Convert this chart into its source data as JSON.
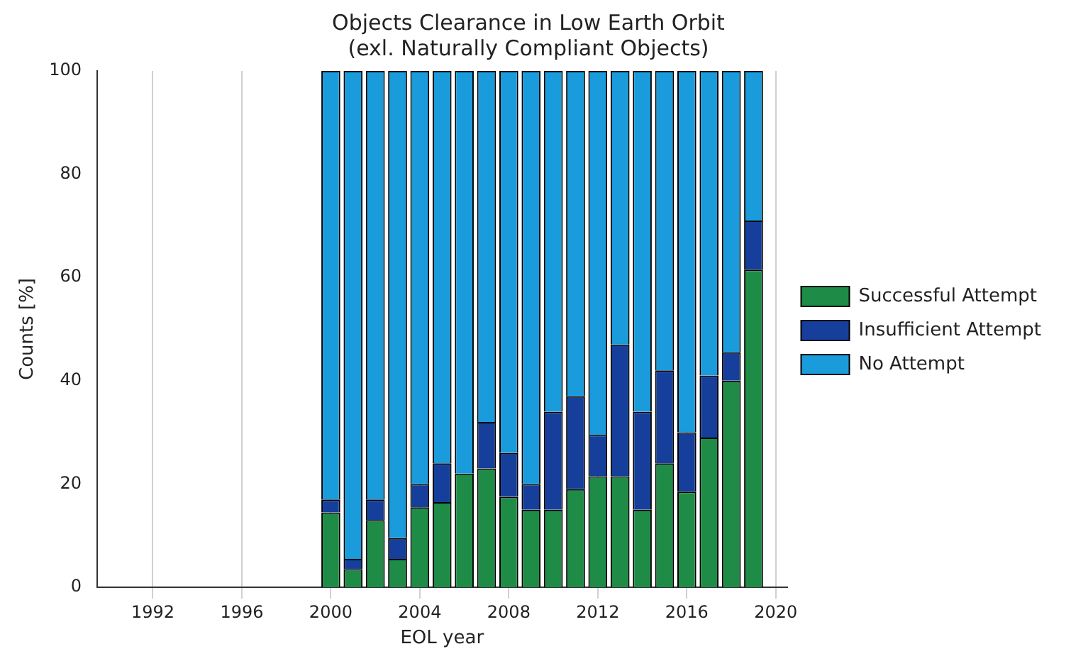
{
  "chart_data": {
    "type": "bar",
    "stacked": true,
    "title": "Objects Clearance in Low Earth Orbit",
    "subtitle": "(exl. Naturally Compliant Objects)",
    "xlabel": "EOL year",
    "ylabel": "Counts [%]",
    "x": [
      2000,
      2001,
      2002,
      2003,
      2004,
      2005,
      2006,
      2007,
      2008,
      2009,
      2010,
      2011,
      2012,
      2013,
      2014,
      2015,
      2016,
      2017,
      2018,
      2019
    ],
    "series": [
      {
        "name": "Successful Attempt",
        "color": "#1e8c46",
        "values": [
          14.5,
          3.5,
          13,
          5.5,
          15.5,
          16.5,
          22,
          23,
          17.5,
          15,
          15,
          19,
          21.5,
          21.5,
          15,
          24,
          18.5,
          29,
          40,
          61.5
        ]
      },
      {
        "name": "Insufficient Attempt",
        "color": "#163f9c",
        "values": [
          2.5,
          2,
          4,
          4,
          4.5,
          7.5,
          0,
          9,
          8.5,
          5,
          19,
          18,
          8,
          25.5,
          19,
          18,
          11.5,
          12,
          5.5,
          9.5
        ]
      },
      {
        "name": "No Attempt",
        "color": "#1a9bdc",
        "values": [
          83,
          94.5,
          83,
          90.5,
          80,
          76,
          78,
          68,
          74,
          80,
          66,
          63,
          70.5,
          53,
          66,
          58,
          70,
          59,
          54.5,
          29
        ]
      }
    ],
    "xlim": [
      1989.5,
      2020.5
    ],
    "xticks": [
      1992,
      1996,
      2000,
      2004,
      2008,
      2012,
      2016,
      2020
    ],
    "ylim": [
      0,
      100
    ],
    "yticks": [
      0,
      20,
      40,
      60,
      80,
      100
    ],
    "grid": "x",
    "legend": "right"
  }
}
